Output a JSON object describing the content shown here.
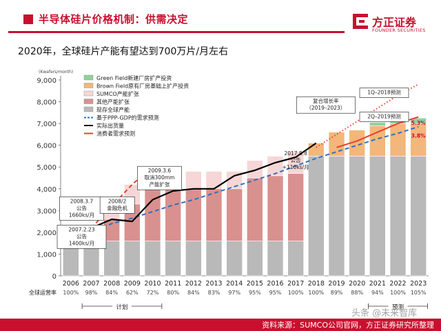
{
  "header": {
    "title": "半导体硅片价格机制：供需决定"
  },
  "logo": {
    "name_cn": "方正证券",
    "name_en": "FOUNDER SECURITIES"
  },
  "subtitle": "2020年，全球硅片产能有望达到700万片/月左右",
  "footer": {
    "source": "资料来源：SUMCO公司官网，方正证券研究所整理"
  },
  "watermark": "头条 @未来智库",
  "colors": {
    "accent": "#c8102e",
    "green_field": "#8fd19e",
    "brown_field": "#f2b77a",
    "sumco": "#f6d6d6",
    "other": "#d9918f",
    "existing": "#b9b9b9",
    "ppp_gdp": "#2e6fbf",
    "shipment": "#000000",
    "consumer": "#e8402f"
  },
  "chart_data": {
    "type": "bar",
    "stacked": true,
    "ylabel": "(Kwafers/month)",
    "ylim": [
      0,
      9000
    ],
    "yticks": [
      0,
      1000,
      2000,
      3000,
      4000,
      5000,
      6000,
      7000,
      8000,
      9000
    ],
    "ytick_labels": [
      "0",
      "1,000",
      "2,000",
      "3,000",
      "4,000",
      "5,000",
      "6,000",
      "7,000",
      "8,000",
      "9,000"
    ],
    "categories": [
      "2006",
      "2007",
      "2008",
      "2009",
      "2010",
      "2011",
      "2012",
      "2013",
      "2014",
      "2015",
      "2016",
      "2017",
      "2018",
      "2019",
      "2020",
      "2021",
      "2022",
      "2023"
    ],
    "utilization_label": "全球运营率",
    "utilization": [
      "100%",
      "98%",
      "84%",
      "62%",
      "72%",
      "80%",
      "84%",
      "83%",
      "97%",
      "95%",
      "95%",
      "100%",
      "100%",
      "89%",
      "88%",
      "94%",
      "100%",
      "105%"
    ],
    "series": [
      {
        "name": "现存全球产能",
        "key": "existing",
        "values": [
          1600,
          1600,
          1600,
          1600,
          1600,
          1600,
          1600,
          1600,
          1600,
          1600,
          1600,
          1600,
          5500,
          5500,
          5500,
          5500,
          5500,
          5500
        ]
      },
      {
        "name": "其他产能扩张",
        "key": "other",
        "values": [
          0,
          500,
          1000,
          1700,
          2400,
          2400,
          2400,
          2400,
          2400,
          2900,
          3000,
          3100,
          0,
          0,
          0,
          0,
          0,
          0
        ]
      },
      {
        "name": "SUMCO产能扩张",
        "key": "sumco",
        "values": [
          0,
          0,
          600,
          900,
          900,
          800,
          800,
          800,
          800,
          800,
          900,
          1000,
          0,
          0,
          0,
          0,
          0,
          0
        ]
      },
      {
        "name": "Brown Field原有厂房基础上扩产投资",
        "key": "brown_field",
        "values": [
          0,
          0,
          0,
          0,
          0,
          0,
          0,
          0,
          0,
          0,
          0,
          0,
          600,
          1100,
          1200,
          1400,
          1500,
          1500
        ]
      },
      {
        "name": "Green Field新建厂房扩产投资",
        "key": "green_field",
        "values": [
          0,
          0,
          0,
          0,
          0,
          0,
          0,
          0,
          0,
          0,
          0,
          0,
          0,
          0,
          0,
          150,
          200,
          250
        ]
      }
    ],
    "lines": [
      {
        "name": "基于PPP-GDP的需求预测",
        "key": "ppp_gdp",
        "style": "dashed",
        "x": [
          "2006",
          "2007",
          "2008",
          "2009",
          "2010",
          "2011",
          "2012",
          "2013",
          "2014",
          "2015",
          "2016",
          "2017",
          "2018",
          "2019",
          "2020",
          "2021",
          "2022",
          "2023"
        ],
        "y": [
          1600,
          2000,
          2400,
          2650,
          2950,
          3250,
          3500,
          3800,
          4100,
          4400,
          4700,
          5050,
          5400,
          5700,
          6000,
          6300,
          6550,
          6850
        ]
      },
      {
        "name": "实际出货量",
        "key": "shipment",
        "style": "solid",
        "x": [
          "2006",
          "2007",
          "2008",
          "2009",
          "2010",
          "2011",
          "2012",
          "2013",
          "2014",
          "2015",
          "2016",
          "2017",
          "2018"
        ],
        "y": [
          1600,
          2200,
          2600,
          2500,
          3500,
          3900,
          4000,
          4000,
          4600,
          4850,
          5200,
          5450,
          6100
        ]
      },
      {
        "name": "消费者需求预测",
        "key": "consumer",
        "style": "dashed",
        "x": [
          "2007",
          "2008",
          "2009",
          "2010"
        ],
        "y": [
          2200,
          3200,
          4200,
          5000
        ]
      },
      {
        "name": "1Q-2018预测",
        "key": "consumer",
        "style": "dotted",
        "x": [
          "2018",
          "2019",
          "2020",
          "2021",
          "2022",
          "2023"
        ],
        "y": [
          5900,
          6500,
          7100,
          7700,
          8300,
          8800
        ]
      },
      {
        "name": "2Q-2019预测",
        "key": "consumer",
        "style": "solid",
        "x": [
          "2019",
          "2020",
          "2021",
          "2022",
          "2023"
        ],
        "y": [
          5900,
          6200,
          6600,
          7000,
          7300
        ]
      }
    ],
    "legend": {
      "placement": "top-left",
      "entries": [
        {
          "label": "Green Field新建厂房扩产投资",
          "key": "green_field",
          "kind": "box"
        },
        {
          "label": "Brown Field原有厂房基础上扩产投资",
          "key": "brown_field",
          "kind": "box"
        },
        {
          "label": "SUMCO产能扩张",
          "key": "sumco",
          "kind": "box"
        },
        {
          "label": "其他产能扩张",
          "key": "other",
          "kind": "box"
        },
        {
          "label": "现存全球产能",
          "key": "existing",
          "kind": "box"
        },
        {
          "label": "基于PPP-GDP的需求预测",
          "key": "ppp_gdp",
          "kind": "dash"
        },
        {
          "label": "实际出货量",
          "key": "shipment",
          "kind": "line"
        },
        {
          "label": "消费者需求预测",
          "key": "consumer",
          "kind": "line"
        }
      ]
    },
    "annotations": [
      {
        "id": "ann-2007",
        "lines": [
          "2007.2.23",
          "公告",
          "1400ks/月"
        ],
        "x": "2007",
        "y": 2300
      },
      {
        "id": "ann-2008a",
        "lines": [
          "2008.3.7",
          "公告",
          "1660ks/月"
        ],
        "x": "2007",
        "y": 3600
      },
      {
        "id": "ann-2008b",
        "lines": [
          "2008/2",
          "金融危机"
        ],
        "x": "2008",
        "y": 3600
      },
      {
        "id": "ann-2009",
        "lines": [
          "2009.3.6",
          "取消300mm",
          "产能扩张"
        ],
        "x": "2010",
        "y": 5000
      },
      {
        "id": "ann-2017",
        "lines": [
          "2017.8.8",
          "公告",
          "+110ks/月"
        ],
        "x": "2017",
        "y": 5800
      },
      {
        "id": "ann-cagr",
        "lines": [
          "复合增长率",
          "（2019–2023）"
        ],
        "x": "2018",
        "y": 8200
      },
      {
        "id": "ann-1q",
        "lines": [
          "1Q–2018预测"
        ],
        "x": "2022",
        "y": 8600
      },
      {
        "id": "ann-2q",
        "lines": [
          "2Q–2019预测"
        ],
        "x": "2022",
        "y": 7500
      },
      {
        "id": "ann-53",
        "lines": [
          "5.3%"
        ],
        "x": "2023",
        "y": 7200
      },
      {
        "id": "ann-38",
        "lines": [
          "3.8%"
        ],
        "x": "2023",
        "y": 6600
      }
    ],
    "period_labels": [
      {
        "label": "计划",
        "from": "2007",
        "to": "2010"
      },
      {
        "label": "预测",
        "from": "2021",
        "to": "2023"
      }
    ]
  }
}
